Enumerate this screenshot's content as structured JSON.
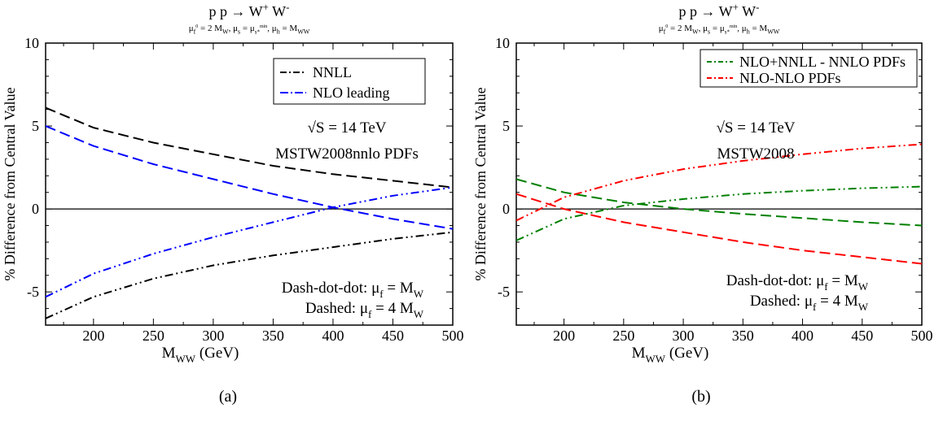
{
  "figure": {
    "captions": [
      "(a)",
      "(b)"
    ]
  },
  "chart_data": [
    {
      "type": "line",
      "title": "p p → W⁺ W⁻",
      "subtitle": "μᶠ⁰ = 2 M_W, μ_s = μ_s*^min, μ_h = M_WW",
      "xlabel": "M_WW (GeV)",
      "ylabel": "% Difference from Central Value",
      "xlim": [
        160,
        500
      ],
      "ylim": [
        -7,
        10
      ],
      "xticks": [
        200,
        250,
        300,
        350,
        400,
        450,
        500
      ],
      "yticks": [
        -5,
        0,
        5,
        10
      ],
      "grid": false,
      "legend_position": "top-right",
      "annotations": [
        "√S = 14 TeV",
        "MSTW2008nnlo PDFs",
        "Dash-dot-dot: μ_f = M_W",
        "Dashed: μ_f = 4 M_W"
      ],
      "x": [
        160,
        200,
        250,
        300,
        350,
        400,
        450,
        500
      ],
      "series": [
        {
          "name": "NNLL",
          "color": "#000000",
          "style": "dashed",
          "values": [
            6.1,
            4.9,
            4.0,
            3.3,
            2.6,
            2.1,
            1.7,
            1.3
          ]
        },
        {
          "name": "",
          "color": "#000000",
          "style": "dash-dot-dot",
          "values": [
            -6.6,
            -5.3,
            -4.2,
            -3.4,
            -2.8,
            -2.3,
            -1.8,
            -1.4
          ]
        },
        {
          "name": "NLO leading",
          "color": "#0000ff",
          "style": "dashed",
          "values": [
            5.0,
            3.8,
            2.7,
            1.8,
            0.9,
            0.1,
            -0.6,
            -1.2
          ]
        },
        {
          "name": "",
          "color": "#0000ff",
          "style": "dash-dot-dot",
          "values": [
            -5.3,
            -3.9,
            -2.7,
            -1.7,
            -0.8,
            0.1,
            0.8,
            1.3
          ]
        }
      ]
    },
    {
      "type": "line",
      "title": "p p → W⁺ W⁻",
      "subtitle": "μᶠ⁰ = 2 M_W, μ_s = μ_s*^min, μ_h = M_WW",
      "xlabel": "M_WW (GeV)",
      "ylabel": "% Difference from Central Value",
      "xlim": [
        160,
        500
      ],
      "ylim": [
        -7,
        10
      ],
      "xticks": [
        200,
        250,
        300,
        350,
        400,
        450,
        500
      ],
      "yticks": [
        -5,
        0,
        5,
        10
      ],
      "grid": false,
      "legend_position": "top-right",
      "annotations": [
        "√S = 14 TeV",
        "MSTW2008",
        "Dash-dot-dot: μ_f = M_W",
        "Dashed: μ_f = 4 M_W"
      ],
      "x": [
        160,
        200,
        250,
        300,
        350,
        400,
        450,
        500
      ],
      "series": [
        {
          "name": "NLO+NNLL - NNLO PDFs",
          "color": "#008000",
          "style": "dash-dot-dot",
          "values": [
            -1.9,
            -0.6,
            0.2,
            0.6,
            0.9,
            1.1,
            1.25,
            1.35
          ]
        },
        {
          "name": "",
          "color": "#008000",
          "style": "dashed",
          "values": [
            1.8,
            1.0,
            0.4,
            0.0,
            -0.3,
            -0.55,
            -0.8,
            -1.0
          ]
        },
        {
          "name": "NLO-NLO PDFs",
          "color": "#ff0000",
          "style": "dash-dot-dot",
          "values": [
            -0.7,
            0.7,
            1.7,
            2.4,
            2.9,
            3.3,
            3.65,
            3.9
          ]
        },
        {
          "name": "",
          "color": "#ff0000",
          "style": "dashed",
          "values": [
            0.9,
            0.0,
            -0.8,
            -1.4,
            -2.0,
            -2.5,
            -2.9,
            -3.3
          ]
        }
      ]
    }
  ]
}
